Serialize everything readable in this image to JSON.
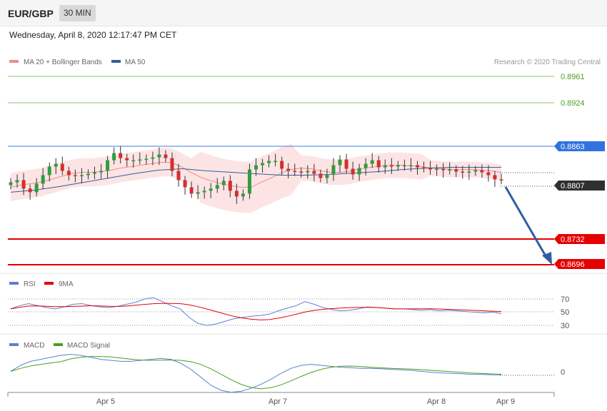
{
  "header": {
    "symbol": "EUR/GBP",
    "timeframe": "30 MIN",
    "datetime": "Wednesday, April 8, 2020 12:17:47 PM CET"
  },
  "legend": {
    "ma20_label": "MA 20 + Bollinger Bands",
    "ma50_label": "MA 50",
    "rsi_label": "RSI",
    "rsi_ma_label": "9MA",
    "macd_label": "MACD",
    "macd_signal_label": "MACD Signal",
    "copyright": "Research © 2020 Trading Central"
  },
  "colors": {
    "ma20": "#f28b8b",
    "ma50": "#335e9c",
    "band_fill": "#fde4e4",
    "bull_candle": "#2e9e3e",
    "bear_candle": "#d32f2f",
    "target": "#e60000",
    "resistance": "#3b7de0",
    "green_level": "#4a9e1f",
    "arrow": "#2f5f9e",
    "rsi": "#5c7fd6",
    "rsi_ma": "#e60000",
    "macd": "#5c7fd6",
    "macd_signal": "#4a9e1f"
  },
  "chart_data": [
    {
      "type": "candlestick",
      "title": "EUR/GBP",
      "x_ticks": [
        "Apr 5",
        "Apr 7",
        "Apr 8",
        "Apr 9"
      ],
      "ylim": [
        0.8675,
        0.8975
      ],
      "levels": [
        {
          "label": "0.8961",
          "value": 0.8961,
          "kind": "green"
        },
        {
          "label": "0.8924",
          "value": 0.8924,
          "kind": "green"
        },
        {
          "label": "0.8863",
          "value": 0.8863,
          "kind": "resistance"
        },
        {
          "label": "0.8807",
          "value": 0.8807,
          "kind": "last"
        },
        {
          "label": "0.8732",
          "value": 0.8732,
          "kind": "target"
        },
        {
          "label": "0.8696",
          "value": 0.8696,
          "kind": "target"
        }
      ],
      "series_approx": {
        "close": [
          0.8812,
          0.8815,
          0.8803,
          0.8798,
          0.881,
          0.8822,
          0.8834,
          0.8838,
          0.8828,
          0.8822,
          0.8821,
          0.8822,
          0.8824,
          0.8826,
          0.8828,
          0.8843,
          0.8853,
          0.8846,
          0.8843,
          0.8843,
          0.8844,
          0.8845,
          0.8847,
          0.8851,
          0.8846,
          0.8828,
          0.8815,
          0.8805,
          0.8796,
          0.8798,
          0.88,
          0.8803,
          0.8808,
          0.8814,
          0.88,
          0.8792,
          0.8796,
          0.883,
          0.8836,
          0.8839,
          0.8842,
          0.8842,
          0.8831,
          0.8828,
          0.8827,
          0.8826,
          0.8828,
          0.8824,
          0.8818,
          0.8823,
          0.8836,
          0.8844,
          0.8831,
          0.8823,
          0.8832,
          0.8838,
          0.8843,
          0.8833,
          0.8836,
          0.8834,
          0.8836,
          0.8836,
          0.8836,
          0.8833,
          0.8832,
          0.883,
          0.8831,
          0.8829,
          0.883,
          0.8827,
          0.8826,
          0.8827,
          0.8829,
          0.8826,
          0.8822,
          0.8816,
          0.8815
        ],
        "ma20": [
          0.8805,
          0.8808,
          0.881,
          0.8812,
          0.8816,
          0.882,
          0.8824,
          0.8826,
          0.8826,
          0.8827,
          0.8829,
          0.8832,
          0.8834,
          0.8836,
          0.8838,
          0.884,
          0.884,
          0.8834,
          0.8826,
          0.8819,
          0.8814,
          0.881,
          0.8807,
          0.8805,
          0.8805,
          0.8812,
          0.8818,
          0.8825,
          0.883,
          0.8832,
          0.8831,
          0.8828,
          0.8826,
          0.8826,
          0.8828,
          0.8831,
          0.8833,
          0.8835,
          0.8836,
          0.8836,
          0.8835,
          0.8834,
          0.8832,
          0.8831,
          0.883,
          0.883,
          0.883,
          0.8829,
          0.8828,
          0.8826
        ],
        "ma50": [
          0.8798,
          0.8801,
          0.8806,
          0.8812,
          0.8818,
          0.8824,
          0.8829,
          0.8831,
          0.8828,
          0.8826,
          0.8824,
          0.8822,
          0.8822,
          0.8823,
          0.8825,
          0.8827,
          0.883,
          0.8832,
          0.8833,
          0.8833,
          0.8833
        ]
      }
    },
    {
      "type": "line",
      "title": "RSI",
      "series": [
        {
          "name": "RSI"
        },
        {
          "name": "9MA"
        }
      ],
      "y_ticks": [
        "70",
        "50",
        "30"
      ],
      "ylim": [
        20,
        80
      ]
    },
    {
      "type": "line",
      "title": "MACD",
      "series": [
        {
          "name": "MACD"
        },
        {
          "name": "MACD Signal"
        }
      ],
      "y_ticks": [
        "0"
      ]
    }
  ]
}
